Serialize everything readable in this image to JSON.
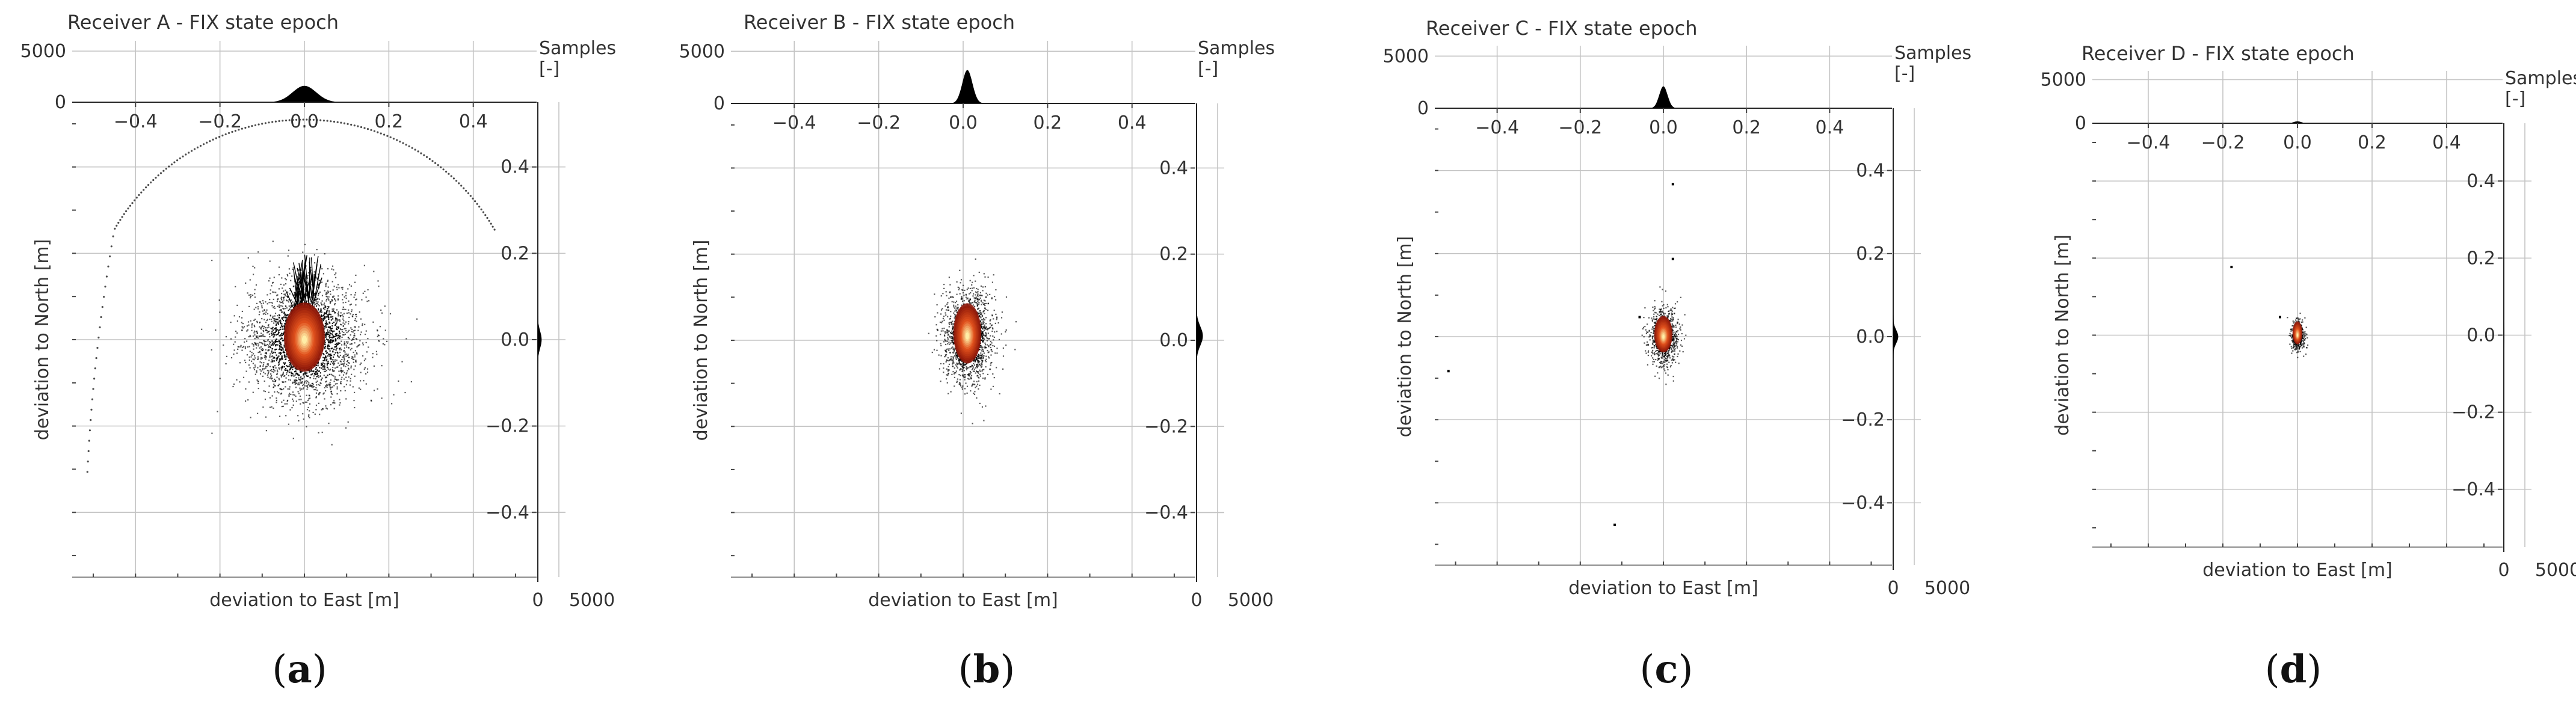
{
  "figure": {
    "captions": [
      "(a)",
      "(b)",
      "(c)",
      "(d)"
    ]
  },
  "colors": {
    "scatter": "#000000",
    "heat_low": "#8a1508",
    "heat_mid": "#e0501c",
    "heat_high": "#fff0a8",
    "marginal": "#000000",
    "grid": "#c4c4c4"
  },
  "chart_data": [
    {
      "type": "scatter",
      "title": "Receiver A - FIX state epoch",
      "xlabel": "deviation to East [m]",
      "ylabel": "deviation to North [m]",
      "xlim": [
        -0.55,
        0.55
      ],
      "ylim": [
        -0.55,
        0.55
      ],
      "xticks": [
        -0.4,
        -0.2,
        0.0,
        0.2,
        0.4
      ],
      "xtick_labels": [
        "−0.4",
        "−0.2",
        "0.0",
        "0.2",
        "0.4"
      ],
      "yticks": [
        0.4,
        0.2,
        0.0,
        -0.2,
        -0.4
      ],
      "ytick_labels": [
        "0.4",
        "0.2",
        "0.0",
        "−0.2",
        "−0.4"
      ],
      "grid": true,
      "marginal_x": {
        "label": "",
        "ticks": [
          0,
          5000
        ],
        "tick_labels": [
          "0",
          "5000"
        ],
        "peak": 1600,
        "sigma": 0.028
      },
      "marginal_y": {
        "label": "Samples\n[-]",
        "ticks": [
          0,
          5000
        ],
        "tick_labels": [
          "0",
          "5000"
        ],
        "peak": 900,
        "sigma": 0.02
      },
      "cloud": {
        "center": [
          0.0,
          0.0
        ],
        "spread": [
          0.07,
          0.07
        ],
        "core": [
          0.022,
          0.04
        ],
        "points": 2800
      },
      "arc": {
        "center": [
          0.0,
          0.0
        ],
        "radius": 0.52,
        "from_deg": 30,
        "to_deg": 172
      }
    },
    {
      "type": "scatter",
      "title": "Receiver B - FIX state epoch",
      "xlabel": "deviation to East [m]",
      "ylabel": "deviation to North [m]",
      "xlim": [
        -0.55,
        0.55
      ],
      "ylim": [
        -0.55,
        0.55
      ],
      "xticks": [
        -0.4,
        -0.2,
        0.0,
        0.2,
        0.4
      ],
      "xtick_labels": [
        "−0.4",
        "−0.2",
        "0.0",
        "0.2",
        "0.4"
      ],
      "yticks": [
        0.4,
        0.2,
        0.0,
        -0.2,
        -0.4
      ],
      "ytick_labels": [
        "0.4",
        "0.2",
        "0.0",
        "−0.2",
        "−0.4"
      ],
      "grid": true,
      "marginal_x": {
        "label": "",
        "ticks": [
          0,
          5000
        ],
        "tick_labels": [
          "0",
          "5000"
        ],
        "peak": 3200,
        "sigma": 0.012
      },
      "marginal_y": {
        "label": "Samples\n[-]",
        "ticks": [
          0,
          5000
        ],
        "tick_labels": [
          "0",
          "5000"
        ],
        "peak": 1500,
        "sigma": 0.022
      },
      "cloud": {
        "center": [
          0.01,
          0.01
        ],
        "spread": [
          0.03,
          0.055
        ],
        "core": [
          0.015,
          0.035
        ],
        "points": 1600
      },
      "arc": null
    },
    {
      "type": "scatter",
      "title": "Receiver C - FIX state epoch",
      "xlabel": "deviation to East [m]",
      "ylabel": "deviation to North [m]",
      "xlim": [
        -0.55,
        0.55
      ],
      "ylim": [
        -0.55,
        0.55
      ],
      "xticks": [
        -0.4,
        -0.2,
        0.0,
        0.2,
        0.4
      ],
      "xtick_labels": [
        "−0.4",
        "−0.2",
        "0.0",
        "0.2",
        "0.4"
      ],
      "yticks": [
        0.4,
        0.2,
        0.0,
        -0.2,
        -0.4
      ],
      "ytick_labels": [
        "0.4",
        "0.2",
        "0.0",
        "−0.2",
        "−0.4"
      ],
      "grid": true,
      "marginal_x": {
        "label": "",
        "ticks": [
          0,
          5000
        ],
        "tick_labels": [
          "0",
          "5000"
        ],
        "peak": 2100,
        "sigma": 0.01
      },
      "marginal_y": {
        "label": "Samples\n[-]",
        "ticks": [
          0,
          5000
        ],
        "tick_labels": [
          "0",
          "5000"
        ],
        "peak": 1200,
        "sigma": 0.016
      },
      "cloud": {
        "center": [
          0.0,
          0.0
        ],
        "spread": [
          0.018,
          0.035
        ],
        "core": [
          0.01,
          0.022
        ],
        "points": 800
      },
      "arc": null
    },
    {
      "type": "scatter",
      "title": "Receiver D - FIX state epoch",
      "xlabel": "deviation to East [m]",
      "ylabel": "deviation to North [m]",
      "xlim": [
        -0.55,
        0.55
      ],
      "ylim": [
        -0.55,
        0.55
      ],
      "xticks": [
        -0.4,
        -0.2,
        0.0,
        0.2,
        0.4
      ],
      "xtick_labels": [
        "−0.4",
        "−0.2",
        "0.0",
        "0.2",
        "0.4"
      ],
      "yticks": [
        0.4,
        0.2,
        0.0,
        -0.2,
        -0.4
      ],
      "ytick_labels": [
        "0.4",
        "0.2",
        "0.0",
        "−0.2",
        "−0.4"
      ],
      "grid": true,
      "marginal_x": {
        "label": "",
        "ticks": [
          0,
          5000
        ],
        "tick_labels": [
          "0",
          "5000"
        ],
        "peak": 220,
        "sigma": 0.01
      },
      "marginal_y": {
        "label": "Samples\n[-]",
        "ticks": [
          0,
          5000
        ],
        "tick_labels": [
          "0",
          "5000"
        ],
        "peak": 120,
        "sigma": 0.014
      },
      "cloud": {
        "center": [
          0.0,
          0.0
        ],
        "spread": [
          0.01,
          0.022
        ],
        "core": [
          0.006,
          0.015
        ],
        "points": 350
      },
      "arc": null
    }
  ]
}
